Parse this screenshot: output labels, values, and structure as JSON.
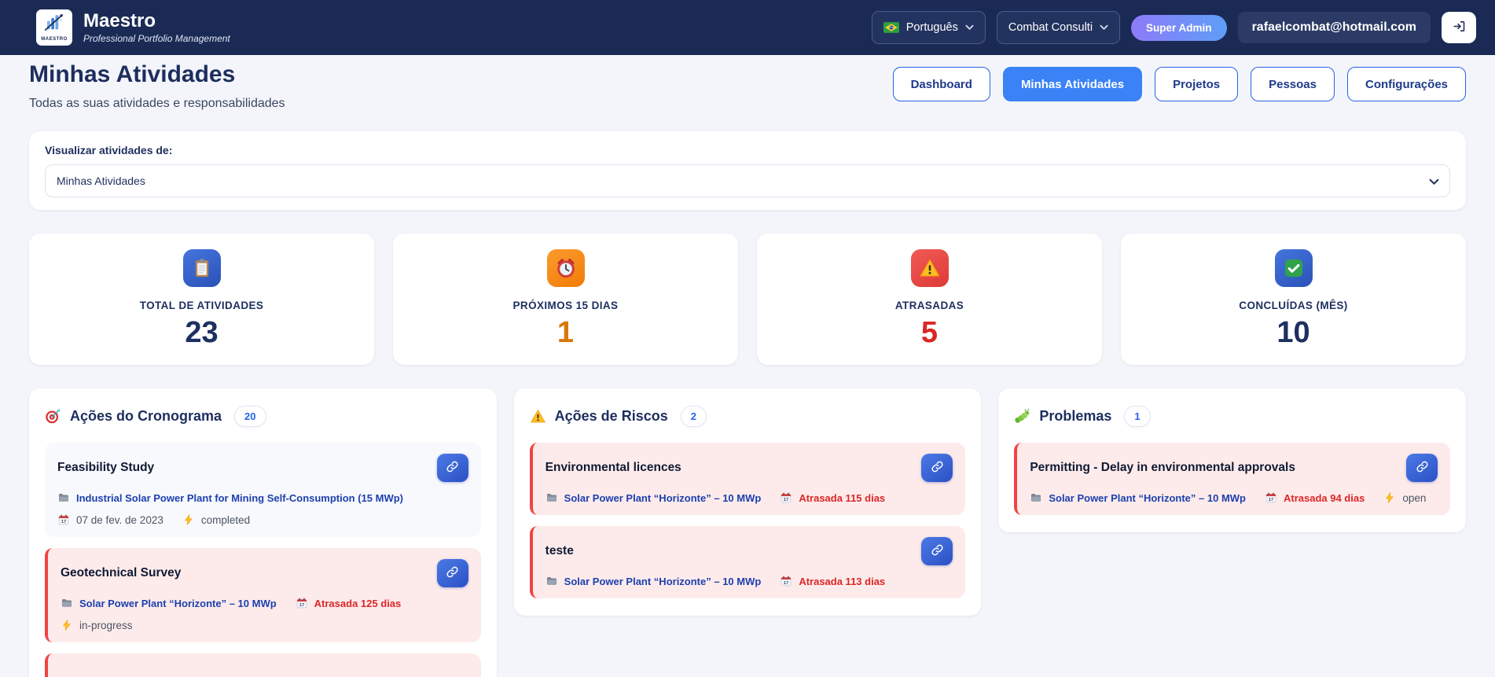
{
  "theme": {
    "accent": "#3b82f6",
    "navy": "#1e3060",
    "red": "#dc2626",
    "orange": "#d97706",
    "header_bg": "#1b2a55"
  },
  "header": {
    "brand_name": "Maestro",
    "brand_tagline": "Professional Portfolio Management",
    "logo_caption": "MAESTRO",
    "language": {
      "value": "Português",
      "icon": "brazil-flag"
    },
    "company": {
      "value": "Combat Consulti"
    },
    "role_badge": "Super Admin",
    "email": "rafaelcombat@hotmail.com"
  },
  "page": {
    "title": "Minhas Atividades",
    "subtitle": "Todas as suas atividades e responsabilidades"
  },
  "nav": [
    {
      "label": "Dashboard",
      "active": false
    },
    {
      "label": "Minhas Atividades",
      "active": true
    },
    {
      "label": "Projetos",
      "active": false
    },
    {
      "label": "Pessoas",
      "active": false
    },
    {
      "label": "Configurações",
      "active": false
    }
  ],
  "filter": {
    "label": "Visualizar atividades de:",
    "selected": "Minhas Atividades"
  },
  "stats": [
    {
      "icon": "clipboard",
      "color": "blue",
      "label": "TOTAL DE ATIVIDADES",
      "value": "23",
      "tone": "navy"
    },
    {
      "icon": "alarm",
      "color": "orange",
      "label": "PRÓXIMOS 15 DIAS",
      "value": "1",
      "tone": "orange"
    },
    {
      "icon": "warning",
      "color": "red",
      "label": "ATRASADAS",
      "value": "5",
      "tone": "red"
    },
    {
      "icon": "check",
      "color": "blue",
      "label": "CONCLUÍDAS (MÊS)",
      "value": "10",
      "tone": "navy"
    }
  ],
  "columns": [
    {
      "icon": "target",
      "title": "Ações do Cronograma",
      "count": "20",
      "items": [
        {
          "title": "Feasibility Study",
          "late": false,
          "rows": [
            [
              {
                "icon": "folder",
                "style": "project",
                "text": "Industrial Solar Power Plant for Mining Self-Consumption (15 MWp)"
              }
            ],
            [
              {
                "icon": "calendar",
                "style": "meta",
                "text": "07 de fev. de 2023"
              },
              {
                "icon": "zap",
                "style": "meta",
                "text": "completed"
              }
            ]
          ]
        },
        {
          "title": "Geotechnical Survey",
          "late": true,
          "rows": [
            [
              {
                "icon": "folder",
                "style": "project",
                "text": "Solar Power Plant “Horizonte” – 10 MWp"
              },
              {
                "icon": "calendar",
                "style": "overdue",
                "text": "Atrasada 125 dias"
              }
            ],
            [
              {
                "icon": "zap",
                "style": "meta",
                "text": "in-progress"
              }
            ]
          ]
        },
        {
          "title": "",
          "late": true,
          "partial": true,
          "rows": []
        }
      ]
    },
    {
      "icon": "warning",
      "title": "Ações de Riscos",
      "count": "2",
      "items": [
        {
          "title": "Environmental licences",
          "late": true,
          "rows": [
            [
              {
                "icon": "folder",
                "style": "project",
                "text": "Solar Power Plant “Horizonte” – 10 MWp"
              },
              {
                "icon": "calendar",
                "style": "overdue",
                "text": "Atrasada 115 dias"
              }
            ]
          ]
        },
        {
          "title": "teste",
          "late": true,
          "rows": [
            [
              {
                "icon": "folder",
                "style": "project",
                "text": "Solar Power Plant “Horizonte” – 10 MWp"
              },
              {
                "icon": "calendar",
                "style": "overdue",
                "text": "Atrasada 113 dias"
              }
            ]
          ]
        }
      ]
    },
    {
      "icon": "bug",
      "title": "Problemas",
      "count": "1",
      "items": [
        {
          "title": "Permitting - Delay in environmental approvals",
          "late": true,
          "rows": [
            [
              {
                "icon": "folder",
                "style": "project",
                "text": "Solar Power Plant “Horizonte” – 10 MWp"
              },
              {
                "icon": "calendar",
                "style": "overdue",
                "text": "Atrasada 94 dias"
              },
              {
                "icon": "zap",
                "style": "meta",
                "text": "open"
              }
            ]
          ]
        }
      ]
    }
  ]
}
